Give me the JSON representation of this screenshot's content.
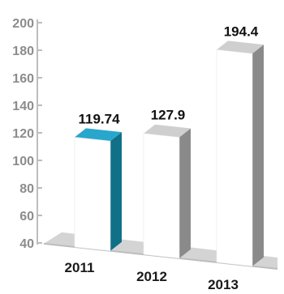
{
  "chart_data": {
    "type": "bar",
    "categories": [
      "2011",
      "2012",
      "2013"
    ],
    "values": [
      119.74,
      127.9,
      194.4
    ],
    "value_labels": [
      "119.74",
      "127.9",
      "194.4"
    ],
    "yticks": [
      "40",
      "60",
      "80",
      "100",
      "120",
      "140",
      "160",
      "180",
      "200"
    ],
    "ylim": [
      40,
      200
    ],
    "grid": false,
    "legend": "none"
  },
  "colors": {
    "highlight_front": "#ffffff",
    "highlight_top": "#29a6cc",
    "highlight_side": "#0f7088",
    "bar_front": "#ffffff",
    "bar_top": "#cfcfcf",
    "bar_side": "#8a8a8a",
    "floor": "#d4d4d4",
    "axis": "#bdbdbd"
  }
}
